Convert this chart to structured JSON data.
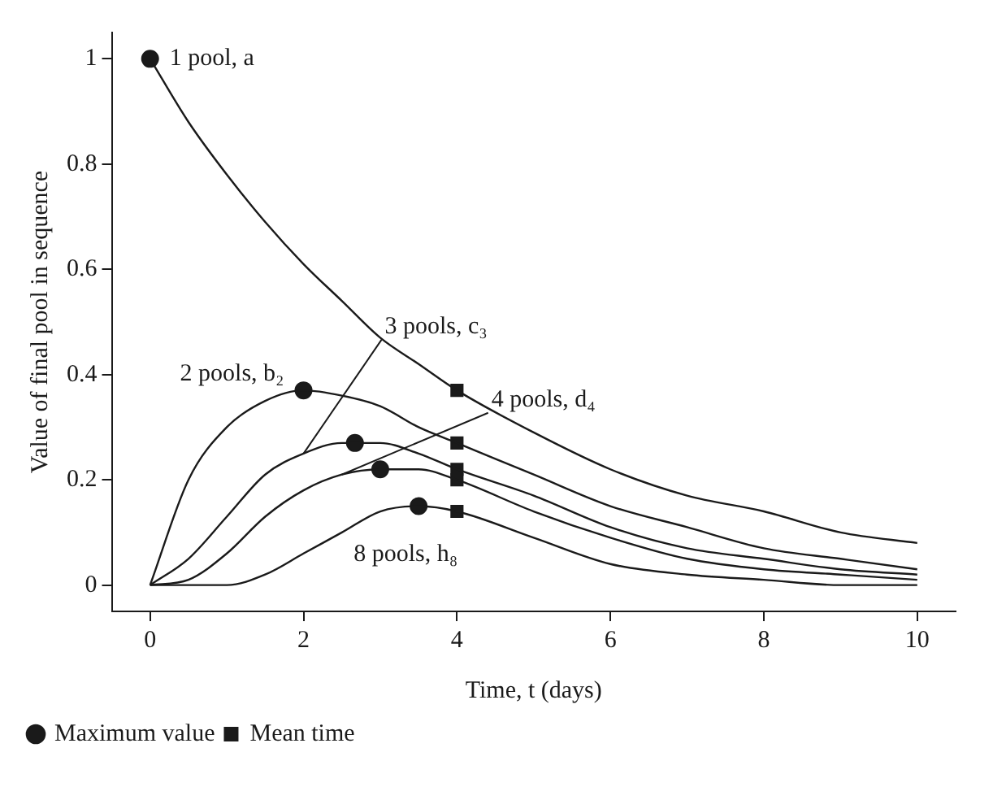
{
  "chart_data": {
    "type": "line",
    "xlabel": "Time, t (days)",
    "ylabel": "Value of final pool in sequence",
    "x": [
      0,
      0.5,
      1,
      1.5,
      2,
      2.5,
      3,
      3.5,
      4,
      5,
      6,
      7,
      8,
      9,
      10
    ],
    "series": [
      {
        "color": "#1a1a1a",
        "marker": "none",
        "values": [
          1,
          0.88,
          0.78,
          0.69,
          0.61,
          0.54,
          0.47,
          0.42,
          0.37,
          0.29,
          0.22,
          0.17,
          0.14,
          0.1,
          0.08
        ]
      },
      {
        "color": "#1a1a1a",
        "marker": "none",
        "values": [
          0,
          0.2,
          0.3,
          0.35,
          0.37,
          0.36,
          0.34,
          0.3,
          0.27,
          0.21,
          0.15,
          0.11,
          0.07,
          0.05,
          0.03
        ]
      },
      {
        "color": "#1a1a1a",
        "marker": "none",
        "values": [
          0,
          0.05,
          0.13,
          0.21,
          0.25,
          0.27,
          0.27,
          0.25,
          0.22,
          0.17,
          0.11,
          0.07,
          0.05,
          0.03,
          0.02
        ]
      },
      {
        "color": "#1a1a1a",
        "marker": "none",
        "values": [
          0,
          0.01,
          0.06,
          0.13,
          0.18,
          0.21,
          0.22,
          0.22,
          0.2,
          0.14,
          0.09,
          0.05,
          0.03,
          0.02,
          0.01
        ]
      },
      {
        "color": "#1a1a1a",
        "marker": "none",
        "values": [
          0,
          0,
          0,
          0.02,
          0.06,
          0.1,
          0.14,
          0.15,
          0.14,
          0.09,
          0.04,
          0.02,
          0.01,
          0,
          0
        ]
      },
      {
        "type": "scatter",
        "name": "Maximum value",
        "color": "#1a1a1a",
        "marker": "circle",
        "x": [
          0,
          2,
          2.67,
          3,
          3.5
        ],
        "values": [
          1,
          0.37,
          0.27,
          0.22,
          0.15
        ]
      },
      {
        "type": "scatter",
        "name": "Mean time",
        "color": "#1a1a1a",
        "marker": "square",
        "x": [
          4,
          4,
          4,
          4,
          4
        ],
        "values": [
          0.37,
          0.27,
          0.22,
          0.2,
          0.14
        ]
      }
    ],
    "annotations": [
      {
        "text": "1 pool, a",
        "x": 0,
        "y": 1
      },
      {
        "text": "2 pools, b₂",
        "x": 2,
        "y": 0.37
      },
      {
        "text": "3 pools, c₃",
        "x": 2,
        "y": 0.25
      },
      {
        "text": "4 pools, d₄",
        "x": 2.5,
        "y": 0.21
      },
      {
        "text": "8 pools, h₈",
        "x": 3.5,
        "y": 0.15
      }
    ],
    "xlim": [
      -0.5,
      10.5
    ],
    "ylim": [
      -0.05,
      1.05
    ],
    "xticks": [
      0,
      2,
      4,
      6,
      8,
      10
    ],
    "yticks": [
      0,
      0.2,
      0.4,
      0.6,
      0.8,
      1
    ],
    "grid": false,
    "legend": "bottom left"
  }
}
